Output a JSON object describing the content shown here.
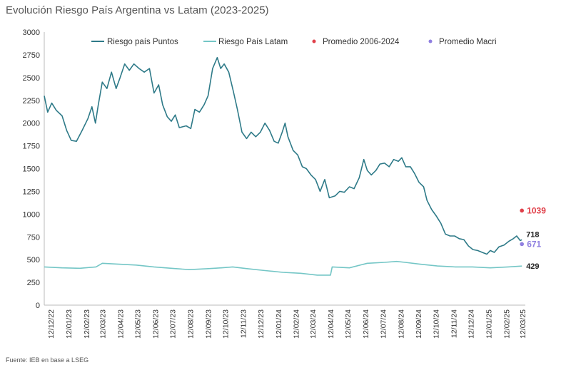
{
  "title": "Evolución Riesgo País Argentina vs Latam (2023-2025)",
  "source": "Fuente: IEB en base a LSEG",
  "colors": {
    "argentina": "#2e7a88",
    "latam": "#74c6c6",
    "promedio_2006_2024": "#e0404a",
    "promedio_macri": "#8f7fe0",
    "axis": "#bbbbbb"
  },
  "chart_data": {
    "type": "line",
    "title": "Evolución Riesgo País Argentina vs Latam (2023-2025)",
    "ylim": [
      0,
      3000
    ],
    "yticks": [
      0,
      250,
      500,
      750,
      1000,
      1250,
      1500,
      1750,
      2000,
      2250,
      2500,
      2750,
      3000
    ],
    "xlim": [
      "2022-12-01",
      "2025-03-12"
    ],
    "xticks": [
      "12/12/22",
      "12/01/23",
      "12/02/23",
      "12/03/23",
      "12/04/23",
      "12/05/23",
      "12/06/23",
      "12/07/23",
      "12/08/23",
      "12/09/23",
      "12/10/23",
      "12/11/23",
      "12/12/23",
      "12/01/24",
      "12/02/24",
      "12/03/24",
      "12/04/24",
      "12/05/24",
      "12/06/24",
      "12/07/24",
      "12/08/24",
      "12/09/24",
      "12/10/24",
      "12/11/24",
      "12/12/24",
      "12/01/25",
      "12/02/25",
      "12/03/25"
    ],
    "grid": false,
    "legend_position": "top",
    "series": [
      {
        "name": "Riesgo país Puntos",
        "end_label": "718",
        "points": [
          [
            "2022-12-01",
            2300
          ],
          [
            "2022-12-07",
            2120
          ],
          [
            "2022-12-14",
            2220
          ],
          [
            "2022-12-22",
            2140
          ],
          [
            "2023-01-01",
            2080
          ],
          [
            "2023-01-09",
            1920
          ],
          [
            "2023-01-17",
            1810
          ],
          [
            "2023-01-26",
            1800
          ],
          [
            "2023-02-05",
            1920
          ],
          [
            "2023-02-15",
            2050
          ],
          [
            "2023-02-22",
            2180
          ],
          [
            "2023-02-28",
            2000
          ],
          [
            "2023-03-05",
            2200
          ],
          [
            "2023-03-12",
            2450
          ],
          [
            "2023-03-20",
            2380
          ],
          [
            "2023-03-28",
            2560
          ],
          [
            "2023-04-05",
            2380
          ],
          [
            "2023-04-12",
            2500
          ],
          [
            "2023-04-20",
            2650
          ],
          [
            "2023-04-28",
            2580
          ],
          [
            "2023-05-06",
            2650
          ],
          [
            "2023-05-15",
            2600
          ],
          [
            "2023-05-24",
            2560
          ],
          [
            "2023-06-02",
            2600
          ],
          [
            "2023-06-10",
            2330
          ],
          [
            "2023-06-18",
            2420
          ],
          [
            "2023-06-25",
            2200
          ],
          [
            "2023-07-03",
            2070
          ],
          [
            "2023-07-10",
            2020
          ],
          [
            "2023-07-17",
            2090
          ],
          [
            "2023-07-24",
            1950
          ],
          [
            "2023-08-05",
            1970
          ],
          [
            "2023-08-13",
            1940
          ],
          [
            "2023-08-20",
            2150
          ],
          [
            "2023-08-28",
            2120
          ],
          [
            "2023-09-05",
            2200
          ],
          [
            "2023-09-12",
            2300
          ],
          [
            "2023-09-20",
            2600
          ],
          [
            "2023-09-28",
            2720
          ],
          [
            "2023-10-04",
            2600
          ],
          [
            "2023-10-10",
            2650
          ],
          [
            "2023-10-18",
            2560
          ],
          [
            "2023-10-26",
            2350
          ],
          [
            "2023-11-02",
            2150
          ],
          [
            "2023-11-10",
            1900
          ],
          [
            "2023-11-18",
            1830
          ],
          [
            "2023-11-26",
            1900
          ],
          [
            "2023-12-04",
            1850
          ],
          [
            "2023-12-12",
            1900
          ],
          [
            "2023-12-20",
            2000
          ],
          [
            "2023-12-28",
            1920
          ],
          [
            "2024-01-05",
            1800
          ],
          [
            "2024-01-12",
            1780
          ],
          [
            "2024-01-19",
            1900
          ],
          [
            "2024-01-24",
            2000
          ],
          [
            "2024-01-29",
            1850
          ],
          [
            "2024-02-07",
            1700
          ],
          [
            "2024-02-15",
            1650
          ],
          [
            "2024-02-23",
            1520
          ],
          [
            "2024-03-01",
            1500
          ],
          [
            "2024-03-09",
            1430
          ],
          [
            "2024-03-17",
            1380
          ],
          [
            "2024-03-25",
            1250
          ],
          [
            "2024-04-02",
            1380
          ],
          [
            "2024-04-10",
            1180
          ],
          [
            "2024-04-20",
            1200
          ],
          [
            "2024-04-28",
            1250
          ],
          [
            "2024-05-06",
            1240
          ],
          [
            "2024-05-15",
            1300
          ],
          [
            "2024-05-23",
            1280
          ],
          [
            "2024-06-01",
            1400
          ],
          [
            "2024-06-09",
            1600
          ],
          [
            "2024-06-15",
            1480
          ],
          [
            "2024-06-22",
            1430
          ],
          [
            "2024-06-30",
            1480
          ],
          [
            "2024-07-07",
            1550
          ],
          [
            "2024-07-15",
            1560
          ],
          [
            "2024-07-23",
            1520
          ],
          [
            "2024-07-31",
            1600
          ],
          [
            "2024-08-08",
            1580
          ],
          [
            "2024-08-14",
            1620
          ],
          [
            "2024-08-21",
            1520
          ],
          [
            "2024-08-29",
            1520
          ],
          [
            "2024-09-05",
            1450
          ],
          [
            "2024-09-13",
            1350
          ],
          [
            "2024-09-21",
            1300
          ],
          [
            "2024-09-27",
            1150
          ],
          [
            "2024-10-05",
            1050
          ],
          [
            "2024-10-13",
            980
          ],
          [
            "2024-10-21",
            900
          ],
          [
            "2024-10-29",
            780
          ],
          [
            "2024-11-06",
            760
          ],
          [
            "2024-11-14",
            760
          ],
          [
            "2024-11-22",
            730
          ],
          [
            "2024-11-30",
            720
          ],
          [
            "2024-12-08",
            650
          ],
          [
            "2024-12-16",
            610
          ],
          [
            "2024-12-24",
            600
          ],
          [
            "2025-01-01",
            580
          ],
          [
            "2025-01-09",
            560
          ],
          [
            "2025-01-15",
            600
          ],
          [
            "2025-01-22",
            580
          ],
          [
            "2025-01-30",
            640
          ],
          [
            "2025-02-08",
            660
          ],
          [
            "2025-02-16",
            700
          ],
          [
            "2025-02-24",
            730
          ],
          [
            "2025-03-02",
            760
          ],
          [
            "2025-03-08",
            710
          ],
          [
            "2025-03-11",
            718
          ]
        ]
      },
      {
        "name": "Riesgo País Latam",
        "end_label": "429",
        "points": [
          [
            "2022-12-01",
            420
          ],
          [
            "2023-01-01",
            410
          ],
          [
            "2023-02-01",
            405
          ],
          [
            "2023-03-01",
            420
          ],
          [
            "2023-03-12",
            460
          ],
          [
            "2023-04-10",
            450
          ],
          [
            "2023-05-10",
            440
          ],
          [
            "2023-06-10",
            420
          ],
          [
            "2023-07-10",
            405
          ],
          [
            "2023-08-10",
            390
          ],
          [
            "2023-09-10",
            400
          ],
          [
            "2023-10-05",
            410
          ],
          [
            "2023-10-25",
            420
          ],
          [
            "2023-11-20",
            400
          ],
          [
            "2023-12-20",
            380
          ],
          [
            "2024-01-20",
            360
          ],
          [
            "2024-02-20",
            350
          ],
          [
            "2024-03-20",
            330
          ],
          [
            "2024-04-12",
            330
          ],
          [
            "2024-04-15",
            420
          ],
          [
            "2024-05-15",
            410
          ],
          [
            "2024-06-15",
            460
          ],
          [
            "2024-07-15",
            470
          ],
          [
            "2024-08-05",
            480
          ],
          [
            "2024-08-20",
            470
          ],
          [
            "2024-09-15",
            450
          ],
          [
            "2024-10-15",
            430
          ],
          [
            "2024-11-15",
            420
          ],
          [
            "2024-12-15",
            420
          ],
          [
            "2025-01-15",
            410
          ],
          [
            "2025-02-15",
            420
          ],
          [
            "2025-03-11",
            429
          ]
        ]
      }
    ],
    "reference_points": [
      {
        "name": "Promedio 2006-2024",
        "x": "2025-03-11",
        "value": 1039,
        "label": "1039"
      },
      {
        "name": "Promedio Macri",
        "x": "2025-03-11",
        "value": 671,
        "label": "671"
      }
    ]
  }
}
